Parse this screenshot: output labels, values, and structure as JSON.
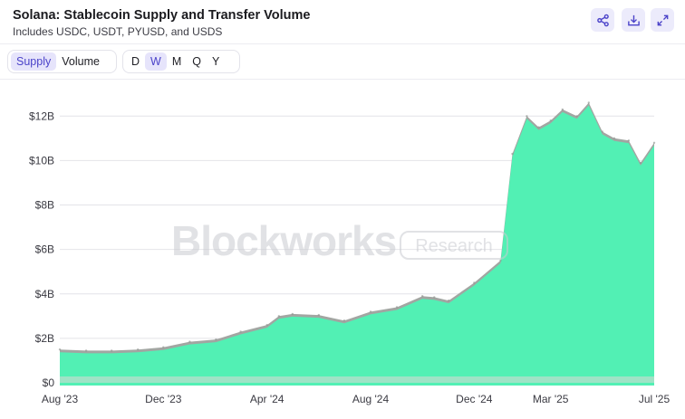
{
  "header": {
    "title": "Solana: Stablecoin Supply and Transfer Volume",
    "subtitle": "Includes USDC, USDT, PYUSD, and USDS",
    "icons": [
      "share-icon",
      "download-icon",
      "expand-icon"
    ]
  },
  "controls": {
    "metric_tabs": [
      {
        "label": "Supply",
        "active": true
      },
      {
        "label": "Volume",
        "active": false
      }
    ],
    "period_tabs": [
      {
        "label": "D",
        "active": false
      },
      {
        "label": "W",
        "active": true
      },
      {
        "label": "M",
        "active": false
      },
      {
        "label": "Q",
        "active": false
      },
      {
        "label": "Y",
        "active": false
      }
    ]
  },
  "watermark": {
    "brand": "Blockworks",
    "tag": "Research"
  },
  "colors": {
    "accent": "#4b43c9",
    "area": "#52f0b4",
    "area_edge": "#a2a6a2",
    "tab_bg": "#e6e4fb"
  },
  "chart_data": {
    "type": "area",
    "x_ticks": [
      "Aug '23",
      "Dec '23",
      "Apr '24",
      "Aug '24",
      "Dec '24",
      "Mar '25",
      "Jul '25"
    ],
    "y_ticks": [
      "$0",
      "$2B",
      "$4B",
      "$6B",
      "$8B",
      "$10B",
      "$12B"
    ],
    "ylim": [
      0,
      12.5
    ],
    "y_unit": "USD billions",
    "grid": true,
    "series": [
      {
        "x": [
          "2023-08-01",
          "2023-09-01",
          "2023-10-01",
          "2023-11-01",
          "2023-12-01",
          "2024-01-01",
          "2024-02-01",
          "2024-03-01",
          "2024-04-01",
          "2024-04-15",
          "2024-05-01",
          "2024-06-01",
          "2024-07-01",
          "2024-08-01",
          "2024-09-01",
          "2024-10-01",
          "2024-10-15",
          "2024-11-01",
          "2024-12-01",
          "2025-01-01",
          "2025-01-15",
          "2025-02-01",
          "2025-02-15",
          "2025-03-01",
          "2025-03-15",
          "2025-04-01",
          "2025-04-15",
          "2025-05-01",
          "2025-05-15",
          "2025-06-01",
          "2025-06-15",
          "2025-07-01"
        ],
        "y": [
          1.5,
          1.45,
          1.45,
          1.5,
          1.6,
          1.85,
          1.95,
          2.3,
          2.6,
          3.0,
          3.1,
          3.05,
          2.8,
          3.2,
          3.4,
          3.9,
          3.85,
          3.7,
          4.5,
          5.5,
          10.3,
          12.0,
          11.5,
          11.8,
          12.3,
          12.0,
          12.6,
          11.3,
          11.0,
          10.9,
          9.9,
          10.8
        ]
      }
    ]
  }
}
